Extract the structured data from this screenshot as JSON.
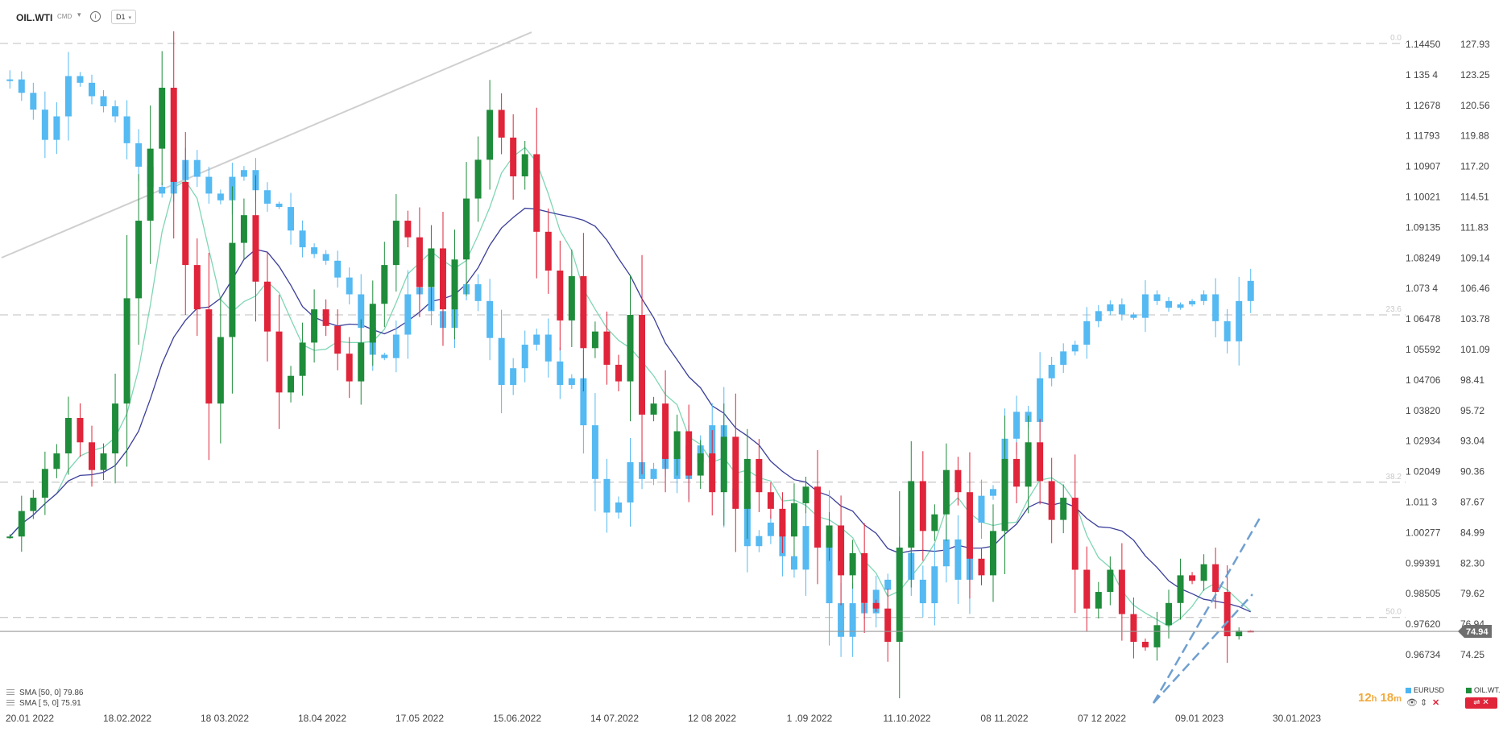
{
  "toolbar": {
    "symbol": "OIL.WTI",
    "badge": "CMD",
    "info": "i",
    "timeframe": "D1"
  },
  "price_tag": "74.94",
  "legend": {
    "sma1": "SMA [50, 0] 79.86",
    "sma2": "SMA [ 5, 0] 75.91"
  },
  "timer": {
    "hours": "12",
    "h": "h",
    "minutes": "18",
    "m": "m"
  },
  "instruments": {
    "eurusd": {
      "label": "EURUSD",
      "color": "#4cb5f0"
    },
    "oil": {
      "label": "OIL.WT.",
      "color": "#1e8c3a"
    }
  },
  "colors": {
    "up": "#1e8c3a",
    "down": "#e0243a",
    "eurusd": "#55b9f2",
    "sma_fast": "#7fd6b3",
    "sma_slow": "#3b3f9a",
    "fib": "#cccccc"
  },
  "chart_data": {
    "type": "candlestick",
    "title": "",
    "x_ticks": [
      "20.01 2022",
      "18.02.2022",
      "18 03.2022",
      "18.04 2022",
      "17.05 2022",
      "15.06.2022",
      "14 07.2022",
      "12 08 2022",
      "1 .09 2022",
      "11.10.2022",
      "08 11.2022",
      "07 12 2022",
      "09.01 2023",
      "30.01.2023"
    ],
    "y_left": {
      "range": [
        71.6,
        129.3
      ],
      "ticks": [
        "127.93",
        "123.25",
        "120.56",
        "119.88",
        "117.20",
        "114.51",
        "111.83",
        "109.14",
        "106.46",
        "103.78",
        "101.09",
        "98.41",
        "95.72",
        "93.04",
        "90.36",
        "87.67",
        "84.99",
        "82.30",
        "79.62",
        "76.94",
        "74.25"
      ]
    },
    "y_right_eurusd": {
      "ticks": [
        "1.14450",
        "1 135 4",
        "1 12678",
        "1 11793",
        "1 10907",
        "1 10021",
        "1.09135",
        "1.08249",
        "1.073 4",
        "1 06478",
        "1 05592",
        "1 04706",
        "1 03820",
        "1 02934",
        "1 02049",
        "1.011 3",
        "1.00277",
        "0.99391",
        "0.98505",
        "0.97620",
        "0.96734"
      ]
    },
    "fibonacci": [
      {
        "level": "0.0",
        "value": 128.0
      },
      {
        "level": "23.6",
        "value": 103.5
      },
      {
        "level": "38.2",
        "value": 88.4
      },
      {
        "level": "50.0",
        "value": 76.2
      }
    ],
    "current_price": 74.94,
    "series": [
      {
        "name": "OIL.WTI",
        "kind": "candles",
        "close": [
          83.5,
          85.8,
          87.0,
          89.6,
          91.0,
          94.2,
          92.0,
          89.5,
          91.0,
          95.5,
          105.0,
          112.0,
          118.5,
          124.0,
          115.5,
          108.0,
          104.0,
          95.5,
          101.5,
          110.0,
          112.5,
          106.5,
          102.0,
          96.5,
          98.0,
          101.0,
          104.0,
          102.5,
          100.0,
          97.5,
          101.0,
          104.5,
          108.0,
          112.0,
          110.5,
          106.0,
          109.5,
          104.0,
          108.5,
          114.0,
          117.5,
          122.0,
          119.5,
          116.0,
          118.0,
          111.0,
          107.5,
          103.0,
          107.0,
          100.5,
          102.0,
          99.0,
          97.5,
          103.5,
          94.5,
          95.5,
          90.5,
          93.0,
          89.0,
          91.0,
          87.5,
          92.5,
          86.0,
          90.5,
          87.5,
          86.0,
          83.5,
          86.5,
          88.0,
          82.5,
          84.5,
          80.0,
          82.0,
          77.5,
          77.0,
          74.0,
          82.5,
          88.5,
          84.0,
          85.5,
          89.5,
          87.5,
          81.5,
          80.0,
          84.0,
          90.5,
          88.0,
          92.0,
          88.5,
          85.0,
          87.0,
          80.5,
          77.0,
          78.5,
          80.5,
          76.5,
          74.0,
          73.5,
          75.5,
          77.5,
          80.0,
          79.5,
          81.0,
          78.5,
          74.5,
          75.0,
          74.94
        ],
        "sma_fast_last": 75.91,
        "sma_slow_last": 79.86
      },
      {
        "name": "EURUSD",
        "kind": "candles",
        "close": [
          1.134,
          1.13,
          1.125,
          1.116,
          1.123,
          1.135,
          1.133,
          1.129,
          1.126,
          1.123,
          1.115,
          1.108,
          1.102,
          1.1,
          1.104,
          1.11,
          1.105,
          1.1,
          1.098,
          1.105,
          1.107,
          1.101,
          1.097,
          1.096,
          1.089,
          1.084,
          1.082,
          1.08,
          1.075,
          1.07,
          1.06,
          1.052,
          1.051,
          1.058,
          1.07,
          1.072,
          1.065,
          1.06,
          1.07,
          1.073,
          1.068,
          1.057,
          1.043,
          1.048,
          1.055,
          1.058,
          1.05,
          1.043,
          1.045,
          1.031,
          1.015,
          1.005,
          1.008,
          1.02,
          1.015,
          1.018,
          1.022,
          1.015,
          1.025,
          1.02,
          1.031,
          1.012,
          1.008,
          0.995,
          0.998,
          1.002,
          0.992,
          0.988,
          1.001,
          0.999,
          0.978,
          0.968,
          0.978,
          0.975,
          0.982,
          0.985,
          0.993,
          0.985,
          0.978,
          0.989,
          0.997,
          0.985,
          1.002,
          1.01,
          1.012,
          1.027,
          1.035,
          1.032,
          1.045,
          1.049,
          1.053,
          1.055,
          1.062,
          1.065,
          1.067,
          1.064,
          1.063,
          1.07,
          1.068,
          1.066,
          1.067,
          1.068,
          1.07,
          1.062,
          1.056,
          1.068,
          1.074
        ]
      }
    ]
  }
}
